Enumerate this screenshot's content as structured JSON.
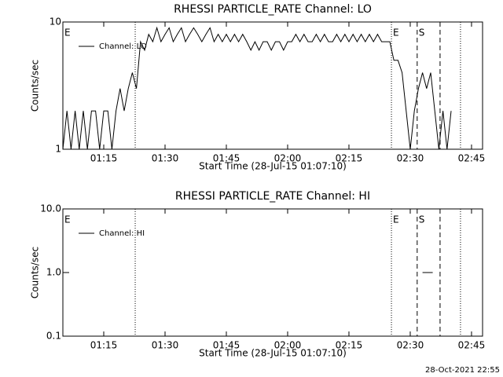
{
  "chart_data": [
    {
      "type": "line",
      "title": "RHESSI PARTICLE_RATE Channel: LO",
      "x_label": "Start Time (28-Jul-15 01:07:10)",
      "y_label": "Counts/sec",
      "log_y": true,
      "legend": "top-left",
      "xlim": [
        65,
        167.7
      ],
      "xticks": [
        {
          "value": 75,
          "label": "01:15"
        },
        {
          "value": 90,
          "label": "01:30"
        },
        {
          "value": 105,
          "label": "01:45"
        },
        {
          "value": 120,
          "label": "02:00"
        },
        {
          "value": 135,
          "label": "02:15"
        },
        {
          "value": 150,
          "label": "02:30"
        },
        {
          "value": 165,
          "label": "02:45"
        }
      ],
      "ylim": [
        1,
        10
      ],
      "yticks": [
        1,
        10
      ],
      "markers": [
        {
          "x": 82.7,
          "style": "dotted"
        },
        {
          "x": 145.4,
          "style": "dotted"
        },
        {
          "x": 151.7,
          "style": "dashed"
        },
        {
          "x": 157.3,
          "style": "dashed"
        },
        {
          "x": 162.3,
          "style": "dotted"
        }
      ],
      "annotations": [
        {
          "text": "E",
          "x": 65
        },
        {
          "text": "E",
          "x": 145.4
        },
        {
          "text": "S",
          "x": 151.7
        }
      ],
      "series": [
        {
          "name": "Channel: LO",
          "color": "#000000",
          "x": [
            65,
            66,
            67,
            68,
            69,
            70,
            71,
            72,
            73,
            74,
            75,
            76,
            77,
            78,
            79,
            80,
            81,
            82,
            83,
            84,
            85,
            86,
            87,
            88,
            89,
            90,
            91,
            92,
            93,
            94,
            95,
            96,
            97,
            98,
            99,
            100,
            101,
            102,
            103,
            104,
            105,
            106,
            107,
            108,
            109,
            110,
            111,
            112,
            113,
            114,
            115,
            116,
            117,
            118,
            119,
            120,
            121,
            122,
            123,
            124,
            125,
            126,
            127,
            128,
            129,
            130,
            131,
            132,
            133,
            134,
            135,
            136,
            137,
            138,
            139,
            140,
            141,
            142,
            143,
            144,
            145,
            146,
            147,
            148,
            149,
            150,
            151,
            152,
            153,
            154,
            155,
            156,
            157,
            158,
            159,
            160
          ],
          "values": [
            1,
            2,
            1,
            2,
            1,
            2,
            1,
            2,
            2,
            1,
            2,
            2,
            1,
            2,
            3,
            2,
            3,
            4,
            3,
            7,
            6,
            8,
            7,
            9,
            7,
            8,
            9,
            7,
            8,
            9,
            7,
            8,
            9,
            8,
            7,
            8,
            9,
            7,
            8,
            7,
            8,
            7,
            8,
            7,
            8,
            7,
            6,
            7,
            6,
            7,
            7,
            6,
            7,
            7,
            6,
            7,
            7,
            8,
            7,
            8,
            7,
            7,
            8,
            7,
            8,
            7,
            7,
            8,
            7,
            8,
            7,
            8,
            7,
            8,
            7,
            8,
            7,
            8,
            7,
            7,
            7,
            5,
            5,
            4,
            2,
            1,
            2,
            3,
            4,
            3,
            4,
            2,
            1,
            2,
            1,
            2
          ]
        }
      ]
    },
    {
      "type": "line",
      "title": "RHESSI PARTICLE_RATE Channel: HI",
      "x_label": "Start Time (28-Jul-15 01:07:10)",
      "y_label": "Counts/sec",
      "log_y": true,
      "legend": "top-left",
      "xlim": [
        65,
        167.7
      ],
      "xticks": [
        {
          "value": 75,
          "label": "01:15"
        },
        {
          "value": 90,
          "label": "01:30"
        },
        {
          "value": 105,
          "label": "01:45"
        },
        {
          "value": 120,
          "label": "02:00"
        },
        {
          "value": 135,
          "label": "02:15"
        },
        {
          "value": 150,
          "label": "02:30"
        },
        {
          "value": 165,
          "label": "02:45"
        }
      ],
      "ylim": [
        0.1,
        10
      ],
      "yticks": [
        0.1,
        {
          "value": 1,
          "label": "1.0"
        },
        {
          "value": 10,
          "label": "10.0"
        }
      ],
      "markers": [
        {
          "x": 82.7,
          "style": "dotted"
        },
        {
          "x": 145.4,
          "style": "dotted"
        },
        {
          "x": 151.7,
          "style": "dashed"
        },
        {
          "x": 157.3,
          "style": "dashed"
        },
        {
          "x": 162.3,
          "style": "dotted"
        }
      ],
      "annotations": [
        {
          "text": "E",
          "x": 65
        },
        {
          "text": "E",
          "x": 145.4
        },
        {
          "text": "S",
          "x": 151.7
        }
      ],
      "series": [
        {
          "name": "Channel: HI",
          "color": "#000000",
          "x": [
            153,
            155.5
          ],
          "values": [
            1,
            1
          ]
        }
      ]
    }
  ],
  "footer": "28-Oct-2021 22:55"
}
